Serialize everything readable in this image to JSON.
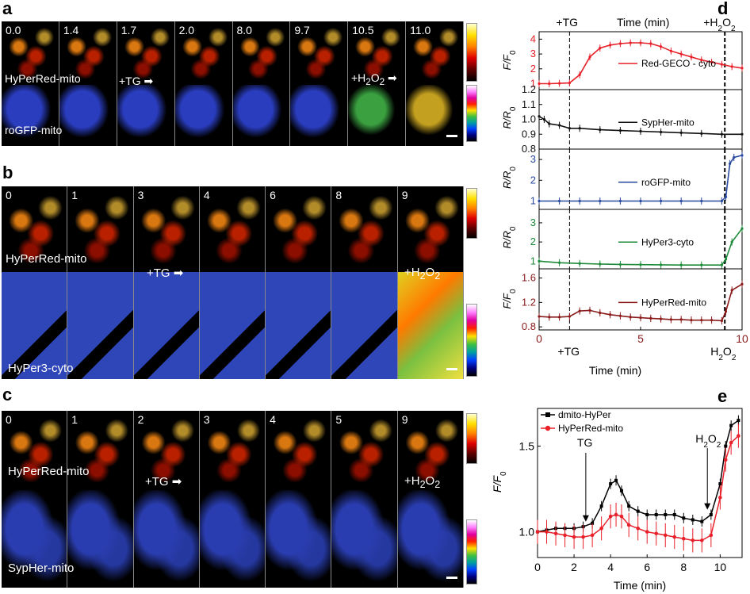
{
  "panel_labels": {
    "a": "a",
    "b": "b",
    "c": "c",
    "d": "d",
    "e": "e"
  },
  "panel_a": {
    "times": [
      "0.0",
      "1.4",
      "1.7",
      "2.0",
      "8.0",
      "9.7",
      "10.5",
      "11.0"
    ],
    "sensor_top": "HyPerRed-mito",
    "sensor_bottom": "roGFP-mito",
    "tg": "+TG",
    "h2o2": "+H",
    "h2o2_sub": "2",
    "h2o2_o": "O",
    "h2o2_sub2": "2"
  },
  "panel_b": {
    "times": [
      "0",
      "1",
      "3",
      "4",
      "6",
      "8",
      "9"
    ],
    "sensor_top": "HyPerRed-mito",
    "sensor_bottom": "HyPer3-cyto",
    "tg": "+TG",
    "h2o2": "+H",
    "h2o2_sub": "2",
    "h2o2_o": "O",
    "h2o2_sub2": "2"
  },
  "panel_c": {
    "times": [
      "0",
      "1",
      "2",
      "3",
      "4",
      "5",
      "9"
    ],
    "sensor_top": "HyPerRed-mito",
    "sensor_bottom": "SypHer-mito",
    "tg": "+TG",
    "h2o2": "+H",
    "h2o2_sub": "2",
    "h2o2_o": "O",
    "h2o2_sub2": "2"
  },
  "chart_data": [
    {
      "id": "d",
      "type": "line",
      "title": "Time (min)",
      "top_annotations": {
        "tg": "+TG",
        "h2o2": "+H",
        "h2o2_sub": "2",
        "h2o2_o": "O",
        "h2o2_sub2": "2"
      },
      "bottom_annotations": {
        "tg": "+TG",
        "h2o2": "H",
        "h2o2_sub": "2",
        "h2o2_o": "O",
        "h2o2_sub2": "2"
      },
      "xlabel": "Time (min)",
      "xlim": [
        0,
        10
      ],
      "xticks": [
        "0",
        "5",
        "10"
      ],
      "tg_time": 1.5,
      "h2o2_time": 9.15,
      "subplots": [
        {
          "ylabel": "F/F",
          "ylabel_sub": "0",
          "ylim": [
            0.6,
            4.5
          ],
          "yticks": [
            "1",
            "2",
            "3",
            "4"
          ],
          "legend": "Red-GECO - cyto",
          "color": "#e8202a",
          "x": [
            0,
            0.5,
            1,
            1.5,
            2,
            2.5,
            3,
            3.5,
            4,
            4.5,
            5,
            5.5,
            6,
            6.5,
            7,
            7.5,
            8,
            8.5,
            9,
            9.5,
            10
          ],
          "y": [
            1.0,
            1.0,
            1.02,
            1.05,
            1.6,
            2.8,
            3.4,
            3.6,
            3.7,
            3.75,
            3.75,
            3.7,
            3.5,
            3.2,
            3.0,
            2.8,
            2.6,
            2.45,
            2.3,
            2.15,
            2.05
          ]
        },
        {
          "ylabel": "R/R",
          "ylabel_sub": "0",
          "ylim": [
            0.8,
            1.2
          ],
          "yticks": [
            "0.8",
            "0.9",
            "1.0",
            "1.1",
            "1.2"
          ],
          "legend": "SypHer-mito",
          "color": "#111111",
          "x": [
            0,
            0.25,
            0.5,
            1,
            1.5,
            2,
            3,
            4,
            5,
            6,
            7,
            8,
            9,
            10
          ],
          "y": [
            1.02,
            1.0,
            0.97,
            0.96,
            0.94,
            0.94,
            0.93,
            0.925,
            0.92,
            0.915,
            0.91,
            0.905,
            0.9,
            0.9
          ]
        },
        {
          "ylabel": "R/R",
          "ylabel_sub": "0",
          "ylim": [
            0.6,
            3.5
          ],
          "yticks": [
            "1",
            "2",
            "3"
          ],
          "legend": "roGFP-mito",
          "color": "#2a4aa0",
          "x": [
            0,
            1,
            2,
            3,
            4,
            5,
            6,
            7,
            8,
            9,
            9.2,
            9.4,
            9.6,
            10
          ],
          "y": [
            1.0,
            1.0,
            1.0,
            1.0,
            1.0,
            1.0,
            1.0,
            1.0,
            1.0,
            1.0,
            1.2,
            2.8,
            3.1,
            3.2
          ]
        },
        {
          "ylabel": "R/R",
          "ylabel_sub": "0",
          "ylim": [
            0.6,
            3.7
          ],
          "yticks": [
            "1",
            "2",
            "3"
          ],
          "legend": "HyPer3-cyto",
          "color": "#1e8a3a",
          "x": [
            0,
            1,
            2,
            3,
            4,
            5,
            6,
            7,
            8,
            9,
            9.2,
            9.5,
            10
          ],
          "y": [
            1.0,
            0.92,
            0.88,
            0.85,
            0.83,
            0.82,
            0.81,
            0.8,
            0.8,
            0.8,
            1.1,
            2.0,
            2.7
          ]
        },
        {
          "ylabel": "F/F",
          "ylabel_sub": "0",
          "ylim": [
            0.75,
            1.75
          ],
          "yticks": [
            "0.8",
            "1.2",
            "1.6"
          ],
          "legend": "HyPerRed-mito",
          "color": "#8a1b1b",
          "x": [
            0,
            0.5,
            1,
            1.5,
            2,
            2.5,
            3,
            3.5,
            4,
            4.5,
            5,
            5.5,
            6,
            6.5,
            7,
            7.5,
            8,
            8.5,
            9,
            9.2,
            9.5,
            10
          ],
          "y": [
            0.97,
            0.96,
            0.96,
            0.97,
            1.06,
            1.07,
            1.03,
            1.0,
            0.98,
            0.96,
            0.95,
            0.94,
            0.93,
            0.92,
            0.92,
            0.91,
            0.91,
            0.91,
            0.9,
            1.05,
            1.4,
            1.5
          ]
        }
      ]
    },
    {
      "id": "e",
      "type": "line",
      "xlabel": "Time (min)",
      "ylabel": "F/F",
      "ylabel_sub": "0",
      "xlim": [
        0,
        11.2
      ],
      "ylim": [
        0.85,
        1.72
      ],
      "xticks": [
        "0",
        "2",
        "4",
        "6",
        "8",
        "10"
      ],
      "yticks": [
        "1.0",
        "1.5"
      ],
      "annotations": {
        "tg": "TG",
        "tg_time": 2.6,
        "h2o2": "H",
        "h2o2_sub": "2",
        "h2o2_o": "O",
        "h2o2_sub2": "2",
        "h2o2_time": 9.3
      },
      "series": [
        {
          "name": "dmito-HyPer",
          "color": "#000000",
          "marker": "square",
          "x": [
            0,
            0.5,
            1,
            1.5,
            2,
            2.5,
            3,
            3.5,
            4,
            4.3,
            4.6,
            5,
            5.5,
            6,
            6.5,
            7,
            7.5,
            8,
            8.5,
            9,
            9.5,
            10,
            10.3,
            10.6,
            11
          ],
          "y": [
            1.0,
            1.01,
            1.02,
            1.02,
            1.02,
            1.03,
            1.05,
            1.15,
            1.28,
            1.3,
            1.24,
            1.15,
            1.12,
            1.1,
            1.1,
            1.1,
            1.1,
            1.08,
            1.07,
            1.06,
            1.1,
            1.28,
            1.5,
            1.62,
            1.65
          ]
        },
        {
          "name": "HyPerRed-mito",
          "color": "#e8202a",
          "marker": "circle",
          "x": [
            0,
            0.5,
            1,
            1.5,
            2,
            2.5,
            3,
            3.5,
            4,
            4.3,
            4.6,
            5,
            5.5,
            6,
            6.5,
            7,
            7.5,
            8,
            8.5,
            9,
            9.5,
            10,
            10.3,
            10.6,
            11
          ],
          "y": [
            1.0,
            1.0,
            0.99,
            0.98,
            0.97,
            0.97,
            0.98,
            1.02,
            1.09,
            1.1,
            1.09,
            1.04,
            1.02,
            1.0,
            0.99,
            0.98,
            0.97,
            0.96,
            0.95,
            0.95,
            0.98,
            1.2,
            1.42,
            1.52,
            1.56
          ]
        }
      ]
    }
  ]
}
